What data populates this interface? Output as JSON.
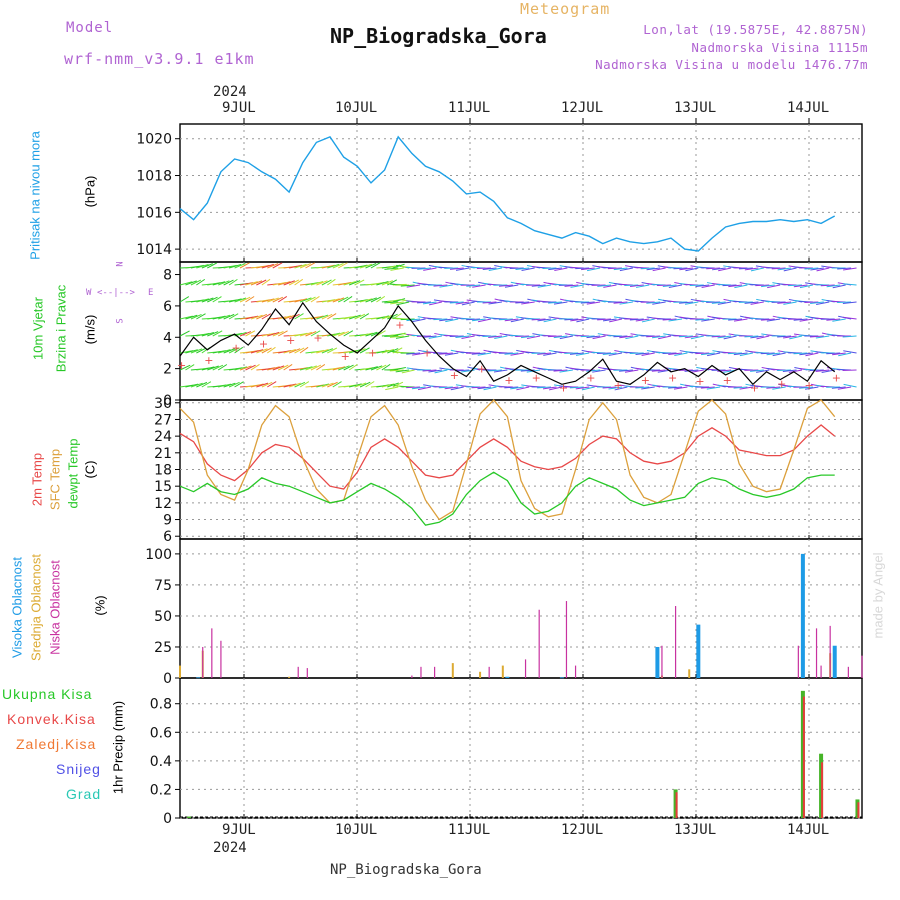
{
  "header": {
    "model_label": "Model",
    "model_name": "wrf-nmm_v3.9.1 e1km",
    "subtitle": "Meteogram",
    "title": "NP_Biogradska_Gora",
    "lonlat": "Lon,lat (19.5875E, 42.8875N)",
    "elevation": "Nadmorska Visina 1115m",
    "model_elevation": "Nadmorska Visina u modelu 1476.77m",
    "footer": "NP_Biogradska_Gora",
    "watermark": "made by Angel"
  },
  "colors": {
    "pressure": "#1ea0e6",
    "temp2m": "#e84848",
    "sfc_temp": "#dca03c",
    "dewpoint": "#28c828",
    "high_cloud": "#1e9be6",
    "mid_cloud": "#dcaa32",
    "low_cloud": "#c832a0",
    "precip_total": "#46b428",
    "precip_conv": "#e63c3c"
  },
  "time_axis": {
    "year": "2024",
    "days": [
      "9JUL",
      "10JUL",
      "11JUL",
      "12JUL",
      "13JUL",
      "14JUL"
    ]
  },
  "panel_labels": {
    "pressure": {
      "name": "Pritisak na nivou mora",
      "unit": "(hPa)"
    },
    "wind": {
      "name1": "10m Vjetar",
      "name2": "Brzina i Pravac",
      "unit": "(m/s)",
      "compass_n": "N",
      "compass_s": "S",
      "compass_w": "W",
      "compass_e": "E",
      "compass_arrow": "<--|-->"
    },
    "temp": {
      "t2m": "2m Temp",
      "sfc": "SFC Temp",
      "dew": "dewpt Temp",
      "unit": "(C)"
    },
    "cloud": {
      "high": "Visoka Oblacnost",
      "mid": "Srednja Oblacnost",
      "low": "Niska Oblacnost",
      "unit": "(%)"
    },
    "precip": {
      "total": "Ukupna Kisa",
      "conv": "Konvek.Kisa",
      "frozen": "Zaledj.Kisa",
      "snow": "Snijeg",
      "hail": "Grad",
      "unit": "1hr Precip (mm)"
    }
  },
  "chart_data": [
    {
      "type": "line",
      "name": "pressure",
      "ylabel": "(hPa)",
      "yticks": [
        1014,
        1016,
        1018,
        1020
      ],
      "ylim": [
        1013.3,
        1020.8
      ],
      "x_hours": [
        0,
        3,
        6,
        9,
        12,
        15,
        18,
        21,
        24,
        27,
        30,
        33,
        36,
        39,
        42,
        45,
        48,
        51,
        54,
        57,
        60,
        63,
        66,
        69,
        72,
        75,
        78,
        81,
        84,
        87,
        90,
        93,
        96,
        99,
        102,
        105,
        108,
        111,
        114,
        117,
        120,
        123,
        126,
        129,
        132,
        135,
        138,
        141,
        144
      ],
      "values": [
        1016.2,
        1015.6,
        1016.5,
        1018.2,
        1018.9,
        1018.7,
        1018.2,
        1017.8,
        1017.1,
        1018.7,
        1019.8,
        1020.1,
        1019.0,
        1018.5,
        1017.6,
        1018.3,
        1020.1,
        1019.2,
        1018.5,
        1018.2,
        1017.7,
        1017.0,
        1017.1,
        1016.6,
        1015.7,
        1015.4,
        1015.0,
        1014.8,
        1014.6,
        1014.9,
        1014.7,
        1014.3,
        1014.6,
        1014.4,
        1014.3,
        1014.4,
        1014.6,
        1014.0,
        1013.9,
        1014.6,
        1015.2,
        1015.4,
        1015.5,
        1015.5,
        1015.6,
        1015.5,
        1015.6,
        1015.4,
        1015.8
      ]
    },
    {
      "type": "line",
      "name": "wind_speed",
      "ylabel": "(m/s)",
      "yticks": [
        0,
        2,
        4,
        6,
        8
      ],
      "ylim": [
        0,
        8.8
      ],
      "x_hours": [
        0,
        3,
        6,
        9,
        12,
        15,
        18,
        21,
        24,
        27,
        30,
        33,
        36,
        39,
        42,
        45,
        48,
        51,
        54,
        57,
        60,
        63,
        66,
        69,
        72,
        75,
        78,
        81,
        84,
        87,
        90,
        93,
        96,
        99,
        102,
        105,
        108,
        111,
        114,
        117,
        120,
        123,
        126,
        129,
        132,
        135,
        138,
        141,
        144
      ],
      "values": [
        2.8,
        4.0,
        3.2,
        3.8,
        4.2,
        3.5,
        4.5,
        5.8,
        4.8,
        6.2,
        5.0,
        4.2,
        3.5,
        3.0,
        3.8,
        4.6,
        6.0,
        5.0,
        3.8,
        2.8,
        2.0,
        1.5,
        2.5,
        1.2,
        1.6,
        2.2,
        1.8,
        1.4,
        1.0,
        1.2,
        1.8,
        2.6,
        1.2,
        1.0,
        1.6,
        2.4,
        1.8,
        2.0,
        1.5,
        2.2,
        1.6,
        2.0,
        1.0,
        1.8,
        1.3,
        1.8,
        1.2,
        2.5,
        1.8
      ]
    },
    {
      "type": "line",
      "name": "temperature",
      "ylabel": "(C)",
      "yticks": [
        6,
        9,
        12,
        15,
        18,
        21,
        24,
        27,
        30
      ],
      "ylim": [
        5.5,
        30.5
      ],
      "x_hours": [
        0,
        3,
        6,
        9,
        12,
        15,
        18,
        21,
        24,
        27,
        30,
        33,
        36,
        39,
        42,
        45,
        48,
        51,
        54,
        57,
        60,
        63,
        66,
        69,
        72,
        75,
        78,
        81,
        84,
        87,
        90,
        93,
        96,
        99,
        102,
        105,
        108,
        111,
        114,
        117,
        120,
        123,
        126,
        129,
        132,
        135,
        138,
        141,
        144
      ],
      "series": [
        {
          "name": "2m Temp",
          "values": [
            24.5,
            23.0,
            19.0,
            17.0,
            16.0,
            18.0,
            21.0,
            22.5,
            22.0,
            20.0,
            17.5,
            15.0,
            14.5,
            17.5,
            22.0,
            23.5,
            22.0,
            19.5,
            17.0,
            16.5,
            17.0,
            19.5,
            22.0,
            23.5,
            22.0,
            19.5,
            18.5,
            18.0,
            18.5,
            20.0,
            22.5,
            24.0,
            23.5,
            21.0,
            19.5,
            19.0,
            19.5,
            21.0,
            24.0,
            25.5,
            24.0,
            21.5,
            21.0,
            20.5,
            20.5,
            21.5,
            24.0,
            26.0,
            24.0
          ]
        },
        {
          "name": "SFC Temp",
          "values": [
            29.0,
            26.5,
            17.0,
            13.5,
            12.5,
            18.0,
            26.0,
            29.5,
            27.5,
            20.0,
            14.5,
            12.0,
            12.5,
            20.0,
            27.5,
            29.5,
            26.0,
            18.5,
            12.5,
            9.0,
            10.5,
            19.0,
            28.0,
            30.5,
            27.5,
            16.0,
            11.0,
            9.5,
            10.0,
            18.0,
            27.0,
            30.0,
            27.0,
            17.0,
            13.0,
            12.0,
            13.5,
            21.0,
            28.5,
            30.5,
            28.0,
            19.0,
            15.0,
            14.0,
            14.5,
            21.5,
            29.0,
            30.5,
            27.5
          ]
        },
        {
          "name": "dewpt Temp",
          "values": [
            15.0,
            14.0,
            15.5,
            14.0,
            13.5,
            14.5,
            16.5,
            15.5,
            15.0,
            14.0,
            13.0,
            12.0,
            12.5,
            14.0,
            15.5,
            14.5,
            13.0,
            11.0,
            8.0,
            8.5,
            10.0,
            13.5,
            16.0,
            17.5,
            16.0,
            12.0,
            10.0,
            10.5,
            12.0,
            15.0,
            16.5,
            15.5,
            14.5,
            12.5,
            11.5,
            12.0,
            12.5,
            13.0,
            15.5,
            16.5,
            16.0,
            14.5,
            13.5,
            13.0,
            13.5,
            14.5,
            16.5,
            17.0,
            17.0
          ]
        }
      ]
    },
    {
      "type": "bar",
      "name": "cloud_cover",
      "ylabel": "(%)",
      "yticks": [
        0,
        25,
        50,
        75,
        100
      ],
      "ylim": [
        0,
        112
      ],
      "series": [
        {
          "name": "Visoka Oblacnost",
          "bars": [
            [
              4,
              0.5
            ],
            [
              72,
              1
            ],
            [
              84,
              0.5
            ],
            [
              105,
              25
            ],
            [
              114,
              43
            ],
            [
              137,
              100
            ],
            [
              144,
              26
            ]
          ]
        },
        {
          "name": "Srednja Oblacnost",
          "bars": [
            [
              0,
              10
            ],
            [
              5,
              22
            ],
            [
              24,
              1
            ],
            [
              60,
              12
            ],
            [
              66,
              5
            ],
            [
              71,
              10
            ],
            [
              106,
              2
            ],
            [
              112,
              7
            ],
            [
              143,
              20
            ]
          ]
        },
        {
          "name": "Niska Oblacnost",
          "bars": [
            [
              5,
              25
            ],
            [
              7,
              40
            ],
            [
              9,
              30
            ],
            [
              26,
              9
            ],
            [
              28,
              8
            ],
            [
              51,
              2
            ],
            [
              53,
              9
            ],
            [
              56,
              9
            ],
            [
              68,
              9
            ],
            [
              76,
              15
            ],
            [
              79,
              55
            ],
            [
              85,
              62
            ],
            [
              87,
              10
            ],
            [
              106,
              26
            ],
            [
              109,
              58
            ],
            [
              136,
              26
            ],
            [
              140,
              40
            ],
            [
              141,
              10
            ],
            [
              143,
              42
            ],
            [
              147,
              9
            ],
            [
              150,
              18
            ]
          ]
        }
      ]
    },
    {
      "type": "bar",
      "name": "precipitation_1hr",
      "ylabel": "1hr Precip (mm)",
      "yticks": [
        0,
        0.2,
        0.4,
        0.6,
        0.8
      ],
      "ylim": [
        0,
        0.98
      ],
      "series": [
        {
          "name": "Ukupna Kisa",
          "bars": [
            [
              2,
              0.01
            ],
            [
              109,
              0.2
            ],
            [
              137,
              0.89
            ],
            [
              141,
              0.45
            ],
            [
              149,
              0.13
            ]
          ]
        },
        {
          "name": "Konvek.Kisa",
          "bars": [
            [
              109,
              0.18
            ],
            [
              137,
              0.85
            ],
            [
              141,
              0.39
            ],
            [
              149,
              0.11
            ]
          ]
        }
      ]
    }
  ]
}
